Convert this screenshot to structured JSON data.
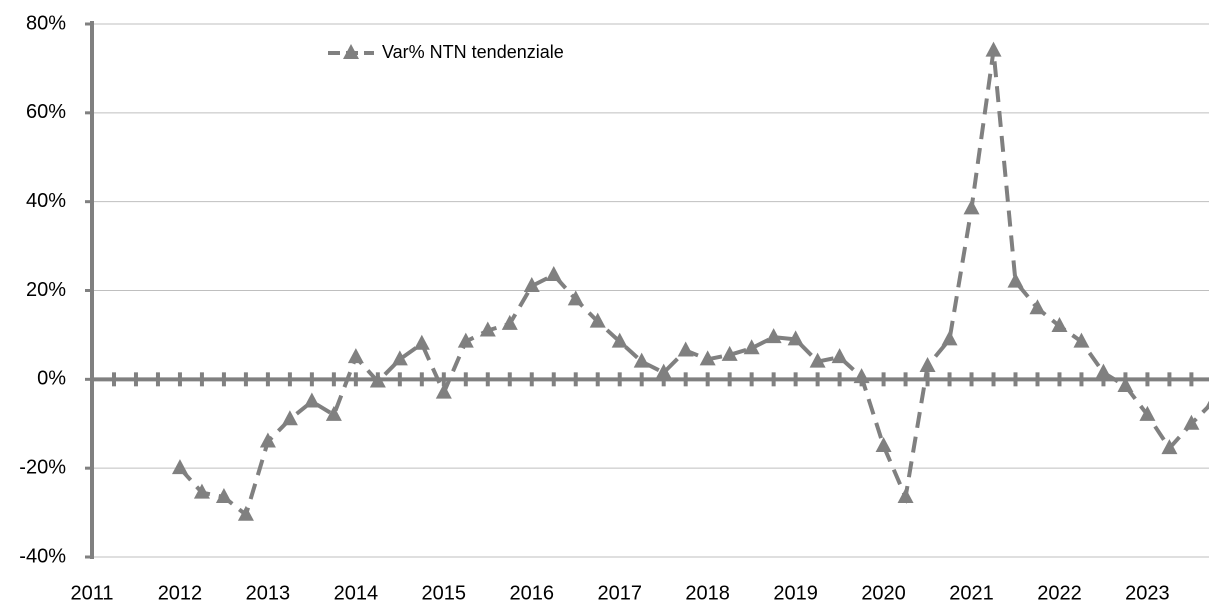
{
  "chart_data": {
    "type": "line",
    "x": [
      2012,
      2012.25,
      2012.5,
      2012.75,
      2013,
      2013.25,
      2013.5,
      2013.75,
      2014,
      2014.25,
      2014.5,
      2014.75,
      2015,
      2015.25,
      2015.5,
      2015.75,
      2016,
      2016.25,
      2016.5,
      2016.75,
      2017,
      2017.25,
      2017.5,
      2017.75,
      2018,
      2018.25,
      2018.5,
      2018.75,
      2019,
      2019.25,
      2019.5,
      2019.75,
      2020,
      2020.25,
      2020.5,
      2020.75,
      2021,
      2021.25,
      2021.5,
      2021.75,
      2022,
      2022.25,
      2022.5,
      2022.75,
      2023,
      2023.25,
      2023.5,
      2023.75
    ],
    "series": [
      {
        "name": "Var% NTN tendenziale",
        "color": "#808080",
        "values": [
          -20,
          -25.5,
          -26.5,
          -30.5,
          -14,
          -9,
          -5,
          -8,
          5,
          -0.5,
          4.5,
          8,
          -3,
          8.5,
          11,
          12.5,
          21,
          23.5,
          18,
          13,
          8.5,
          4,
          1.5,
          6.5,
          4.5,
          5.5,
          7,
          9.5,
          9,
          4,
          5,
          0.5,
          -15,
          -26.5,
          3,
          9,
          38.5,
          74,
          22,
          16,
          12,
          8.5,
          1.5,
          -1.5,
          -8,
          -15.5,
          -10,
          -5
        ]
      }
    ],
    "xlim": [
      2011,
      2023.7
    ],
    "xticks": [
      2011,
      2012,
      2013,
      2014,
      2015,
      2016,
      2017,
      2018,
      2019,
      2020,
      2021,
      2022,
      2023
    ],
    "ylim": [
      -40,
      80
    ],
    "yticks": [
      {
        "value": -40,
        "label": "-40%"
      },
      {
        "value": -20,
        "label": "-20%"
      },
      {
        "value": 0,
        "label": "0%"
      },
      {
        "value": 20,
        "label": "20%"
      },
      {
        "value": 40,
        "label": "40%"
      },
      {
        "value": 60,
        "label": "60%"
      },
      {
        "value": 80,
        "label": "80%"
      }
    ],
    "grid": true,
    "legend": "top-left"
  }
}
